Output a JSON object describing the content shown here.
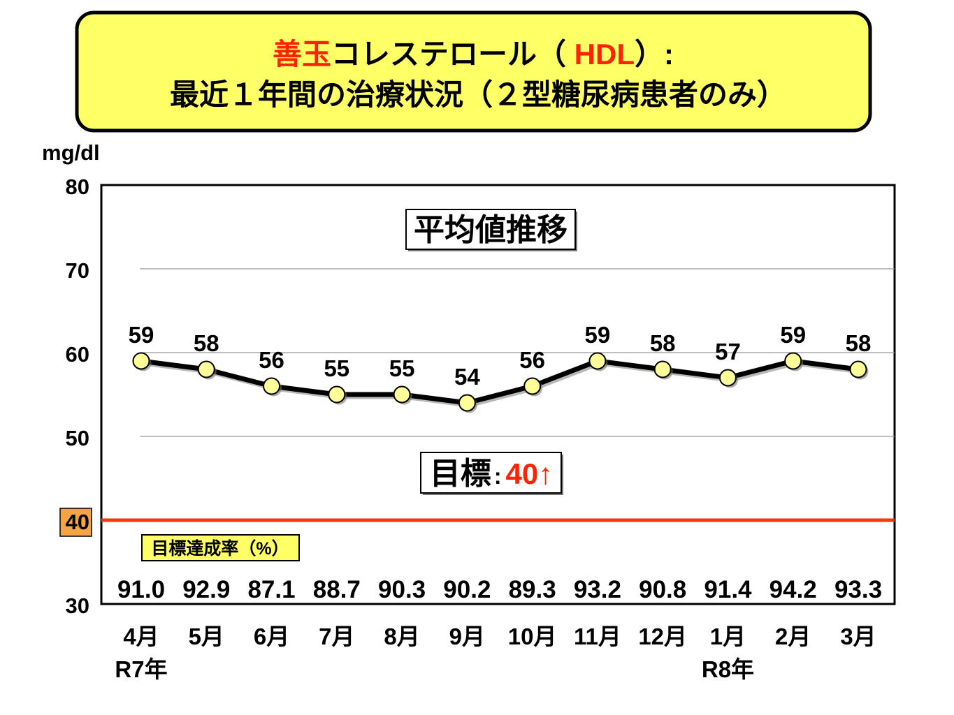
{
  "colors": {
    "page_bg": "#FFFFFF",
    "title_bg": "#FFFF66",
    "title_highlight": "#FF2200",
    "target_value_text": "#FF2200",
    "target_line": "#FF3311",
    "marker_fill": "#FFFF99",
    "series_line": "#000000",
    "tick_highlight_bg": "#F5A444",
    "rate_label_bg": "#FFFF66",
    "gridline": "#999999"
  },
  "chart_data": {
    "type": "line",
    "title": {
      "line1": [
        {
          "text": "善玉",
          "highlight": true
        },
        {
          "text": "コレステロール（ ",
          "highlight": false
        },
        {
          "text": "HDL",
          "highlight": true
        },
        {
          "text": "）:",
          "highlight": false
        }
      ],
      "line2": "最近１年間の治療状況（２型糖尿病患者のみ）"
    },
    "ylabel": "mg/dl",
    "ylim": [
      30,
      80
    ],
    "yticks": [
      30,
      40,
      50,
      60,
      70,
      80
    ],
    "highlighted_ytick": 40,
    "grid": true,
    "gridlines": [
      50,
      60,
      70
    ],
    "categories": [
      "4月",
      "5月",
      "6月",
      "7月",
      "8月",
      "9月",
      "10月",
      "11月",
      "12月",
      "1月",
      "2月",
      "3月"
    ],
    "year_markers": [
      {
        "index": 0,
        "text": "R7年"
      },
      {
        "index": 9,
        "text": "R8年"
      }
    ],
    "series": [
      {
        "values": [
          59,
          58,
          56,
          55,
          55,
          54,
          56,
          59,
          58,
          57,
          59,
          58
        ],
        "data_labels": true
      }
    ],
    "annotation": "平均値推移",
    "target": {
      "value": 40,
      "label": "目標",
      "separator": ":",
      "value_label": "40↑"
    },
    "achievement_rate": {
      "label": "目標達成率（%）",
      "values": [
        "91.0",
        "92.9",
        "87.1",
        "88.7",
        "90.3",
        "90.2",
        "89.3",
        "93.2",
        "90.8",
        "91.4",
        "94.2",
        "93.3"
      ]
    }
  }
}
